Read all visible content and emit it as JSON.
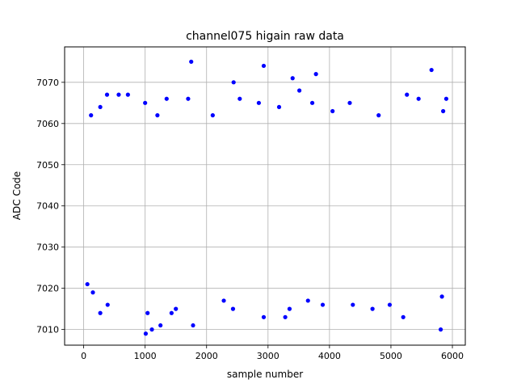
{
  "chart_data": {
    "type": "scatter",
    "title": "channel075 higain raw data",
    "xlabel": "sample number",
    "ylabel": "ADC Code",
    "xlim": [
      -310,
      6210
    ],
    "ylim": [
      7006.2,
      7078.6
    ],
    "xticks": [
      0,
      1000,
      2000,
      3000,
      4000,
      5000,
      6000
    ],
    "yticks": [
      7010,
      7020,
      7030,
      7040,
      7050,
      7060,
      7070
    ],
    "xtick_labels": [
      "0",
      "1000",
      "2000",
      "3000",
      "4000",
      "5000",
      "6000"
    ],
    "ytick_labels": [
      "7010",
      "7020",
      "7030",
      "7040",
      "7050",
      "7060",
      "7070"
    ],
    "grid": true,
    "legend": "none",
    "marker_color": "#0000ff",
    "series": [
      {
        "values": [
          {
            "x": 1750,
            "y": 7075
          },
          {
            "x": 2930,
            "y": 7074
          },
          {
            "x": 5660,
            "y": 7073
          },
          {
            "x": 3780,
            "y": 7072
          },
          {
            "x": 3400,
            "y": 7071
          },
          {
            "x": 2440,
            "y": 7070
          },
          {
            "x": 3510,
            "y": 7068
          },
          {
            "x": 380,
            "y": 7067
          },
          {
            "x": 570,
            "y": 7067
          },
          {
            "x": 720,
            "y": 7067
          },
          {
            "x": 5260,
            "y": 7067
          },
          {
            "x": 1350,
            "y": 7066
          },
          {
            "x": 1700,
            "y": 7066
          },
          {
            "x": 2540,
            "y": 7066
          },
          {
            "x": 5450,
            "y": 7066
          },
          {
            "x": 5900,
            "y": 7066
          },
          {
            "x": 1000,
            "y": 7065
          },
          {
            "x": 2850,
            "y": 7065
          },
          {
            "x": 3720,
            "y": 7065
          },
          {
            "x": 4330,
            "y": 7065
          },
          {
            "x": 270,
            "y": 7064
          },
          {
            "x": 3180,
            "y": 7064
          },
          {
            "x": 4050,
            "y": 7063
          },
          {
            "x": 5850,
            "y": 7063
          },
          {
            "x": 120,
            "y": 7062
          },
          {
            "x": 1200,
            "y": 7062
          },
          {
            "x": 2100,
            "y": 7062
          },
          {
            "x": 4800,
            "y": 7062
          },
          {
            "x": 1010,
            "y": 7009
          },
          {
            "x": 1110,
            "y": 7010
          },
          {
            "x": 5810,
            "y": 7010
          },
          {
            "x": 1250,
            "y": 7011
          },
          {
            "x": 1780,
            "y": 7011
          },
          {
            "x": 3280,
            "y": 7013
          },
          {
            "x": 2930,
            "y": 7013
          },
          {
            "x": 1040,
            "y": 7014
          },
          {
            "x": 270,
            "y": 7014
          },
          {
            "x": 1430,
            "y": 7014
          },
          {
            "x": 5200,
            "y": 7013
          },
          {
            "x": 1500,
            "y": 7015
          },
          {
            "x": 2430,
            "y": 7015
          },
          {
            "x": 3350,
            "y": 7015
          },
          {
            "x": 4700,
            "y": 7015
          },
          {
            "x": 390,
            "y": 7016
          },
          {
            "x": 4380,
            "y": 7016
          },
          {
            "x": 3890,
            "y": 7016
          },
          {
            "x": 5830,
            "y": 7018
          },
          {
            "x": 2280,
            "y": 7017
          },
          {
            "x": 60,
            "y": 7021
          },
          {
            "x": 150,
            "y": 7019
          },
          {
            "x": 3650,
            "y": 7017
          },
          {
            "x": 4980,
            "y": 7016
          }
        ]
      }
    ]
  }
}
